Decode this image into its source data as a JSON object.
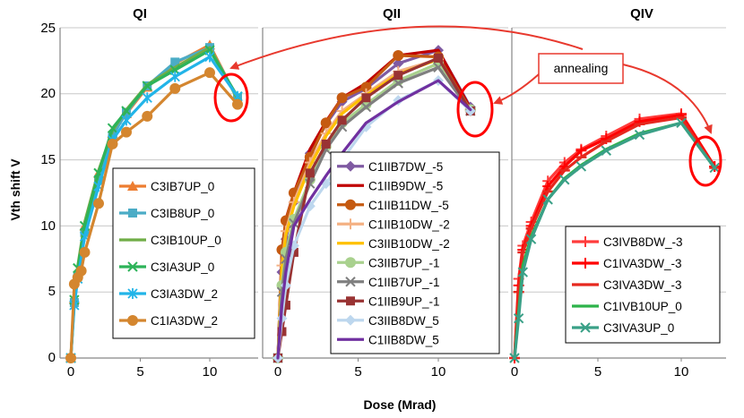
{
  "chart_data": {
    "type": "line",
    "ylabel": "Vth shift V",
    "xlabel": "Dose (Mrad)",
    "ylim": [
      0,
      25
    ],
    "yticks": [
      "0",
      "5",
      "10",
      "15",
      "20",
      "25"
    ],
    "xlim": [
      -1,
      12.5
    ],
    "xticks": [
      0,
      5,
      10
    ],
    "annotation": "annealing",
    "colors": {
      "ellipse": "#ff0000",
      "arrow": "#e8392e",
      "grid": "#c8c8c8",
      "axis": "#868686"
    },
    "panels": [
      {
        "title": "QI",
        "legend_position": "right-middle",
        "series": [
          {
            "name": "C3IB7UP_0",
            "color": "#ed7d31",
            "marker": "triangle",
            "x": [
              0,
              0.25,
              0.5,
              1,
              2,
              3,
              4,
              5.5,
              7.5,
              10,
              12
            ],
            "y": [
              0,
              4.5,
              6.5,
              10.0,
              14.0,
              17.0,
              18.5,
              20.5,
              22.3,
              23.7,
              19.6
            ]
          },
          {
            "name": "C3IB8UP_0",
            "color": "#4bacc6",
            "marker": "square",
            "x": [
              0,
              0.25,
              0.5,
              1,
              2,
              3,
              4,
              5.5,
              7.5,
              10,
              12
            ],
            "y": [
              0,
              4.2,
              6.2,
              9.5,
              13.5,
              16.8,
              18.6,
              20.6,
              22.4,
              23.5,
              19.7
            ]
          },
          {
            "name": "C3IB10UP_0",
            "color": "#70ad47",
            "marker": "none",
            "x": [
              0,
              0.25,
              0.5,
              1,
              2,
              3,
              4,
              5.5,
              7.5,
              10,
              12
            ],
            "y": [
              0,
              4.8,
              7.0,
              10.3,
              14.2,
              17.2,
              18.8,
              20.7,
              22.0,
              23.5,
              19.6
            ]
          },
          {
            "name": "C3IA3UP_0",
            "color": "#2db359",
            "marker": "x",
            "x": [
              0,
              0.25,
              0.5,
              1,
              2,
              3,
              4,
              5.5,
              7.5,
              10,
              12
            ],
            "y": [
              0,
              4.4,
              6.8,
              10.0,
              14.0,
              17.4,
              18.7,
              20.6,
              21.8,
              23.3,
              19.8
            ]
          },
          {
            "name": "C3IA3DW_2",
            "color": "#22b4e8",
            "marker": "star",
            "x": [
              0,
              0.25,
              0.5,
              1,
              2,
              3,
              4,
              5.5,
              7.5,
              10,
              12
            ],
            "y": [
              0,
              4.0,
              6.0,
              9.2,
              13.0,
              16.5,
              18.0,
              19.7,
              21.3,
              22.8,
              19.8
            ]
          },
          {
            "name": "C1IA3DW_2",
            "color": "#d4862f",
            "marker": "circle",
            "x": [
              0,
              0.25,
              0.5,
              0.75,
              1,
              2,
              3,
              4,
              5.5,
              7.5,
              10,
              12
            ],
            "y": [
              0,
              5.6,
              6.1,
              6.6,
              8.0,
              11.7,
              16.2,
              17.1,
              18.3,
              20.4,
              21.6,
              19.2
            ]
          }
        ]
      },
      {
        "title": "QII",
        "legend_position": "bottom-right",
        "series": [
          {
            "name": "C1IIB7DW_-5",
            "color": "#7f5aa2",
            "marker": "diamond",
            "x": [
              0,
              0.25,
              0.5,
              1,
              2,
              3,
              4,
              5.5,
              7.5,
              10,
              12
            ],
            "y": [
              0,
              6.5,
              9.0,
              11.8,
              15.5,
              17.7,
              19.4,
              20.4,
              22.3,
              23.3,
              19.0
            ]
          },
          {
            "name": "C1IIB9DW_-5",
            "color": "#c00000",
            "marker": "none",
            "x": [
              0,
              0.25,
              0.5,
              1,
              2,
              3,
              4,
              5.5,
              7.5,
              10,
              12
            ],
            "y": [
              0,
              8.0,
              10.5,
              12.5,
              15.8,
              17.9,
              19.7,
              20.8,
              22.9,
              23.3,
              18.9
            ]
          },
          {
            "name": "C1IIB11DW_-5",
            "color": "#c55a11",
            "marker": "circle",
            "x": [
              0,
              0.25,
              0.5,
              1,
              2,
              3,
              4,
              5.5,
              7.5,
              10,
              12
            ],
            "y": [
              0,
              8.2,
              10.4,
              12.5,
              15.2,
              17.8,
              19.7,
              20.5,
              22.9,
              22.8,
              18.8
            ]
          },
          {
            "name": "C1IIB10DW_-2",
            "color": "#f4b183",
            "marker": "plus",
            "x": [
              0,
              0.25,
              0.5,
              1,
              2,
              3,
              4,
              5.5,
              7.5,
              10,
              12
            ],
            "y": [
              0,
              7.0,
              9.6,
              11.8,
              14.8,
              17.0,
              18.7,
              20.0,
              21.7,
              22.6,
              18.7
            ]
          },
          {
            "name": "C3IIB10DW_-2",
            "color": "#ffc000",
            "marker": "none",
            "x": [
              0,
              0.25,
              0.5,
              1,
              2,
              3,
              4,
              5.5,
              7.5,
              10,
              12
            ],
            "y": [
              0,
              6.8,
              9.3,
              11.5,
              14.5,
              16.8,
              18.5,
              19.9,
              21.5,
              22.6,
              18.6
            ]
          },
          {
            "name": "C3IIB7UP_-1",
            "color": "#a9d18e",
            "marker": "circle",
            "x": [
              0,
              0.25,
              0.5,
              1,
              2,
              3,
              4,
              5.5,
              7.5,
              10,
              12
            ],
            "y": [
              0,
              5.5,
              8.0,
              10.5,
              13.5,
              16.0,
              17.8,
              19.2,
              21.0,
              22.3,
              18.8
            ]
          },
          {
            "name": "C1IIB7UP_-1",
            "color": "#7f7f7f",
            "marker": "x",
            "x": [
              0,
              0.25,
              0.5,
              1,
              2,
              3,
              4,
              5.5,
              7.5,
              10,
              12
            ],
            "y": [
              0,
              5.0,
              7.5,
              10.2,
              13.2,
              15.8,
              17.5,
              19.0,
              20.8,
              22.0,
              18.7
            ]
          },
          {
            "name": "C1IIB9UP_-1",
            "color": "#993333",
            "marker": "square",
            "x": [
              0,
              0.25,
              0.5,
              1,
              2,
              3,
              4,
              5.5,
              7.5,
              10,
              12
            ],
            "y": [
              0,
              2.0,
              4.0,
              8.0,
              14.0,
              16.2,
              18.0,
              19.7,
              21.4,
              22.7,
              18.7
            ]
          },
          {
            "name": "C3IIB8DW_5",
            "color": "#bdd7ee",
            "marker": "diamond",
            "x": [
              0,
              0.25,
              0.5,
              1,
              2,
              3,
              4,
              5.5,
              7.5,
              10,
              12
            ],
            "y": [
              0,
              3.0,
              5.5,
              8.5,
              11.5,
              13.2,
              15.0,
              17.5,
              19.5,
              21.0,
              18.7
            ]
          },
          {
            "name": "C1IIB8DW_5",
            "color": "#7030a0",
            "marker": "none",
            "x": [
              0,
              0.25,
              0.5,
              1,
              2,
              3,
              4,
              5.5,
              7.5,
              10,
              12
            ],
            "y": [
              0,
              4.0,
              6.5,
              10.0,
              12.0,
              13.8,
              15.5,
              17.8,
              19.4,
              21.0,
              18.8
            ]
          }
        ]
      },
      {
        "title": "QIV",
        "legend_position": "right-middle",
        "series": [
          {
            "name": "C3IVB8DW_-3",
            "color": "#ff3b3b",
            "marker": "plus",
            "x": [
              0,
              0.25,
              0.5,
              1,
              2,
              3,
              4,
              5.5,
              7.5,
              10,
              12
            ],
            "y": [
              0,
              6.0,
              8.5,
              10.3,
              13.4,
              14.8,
              15.8,
              16.8,
              18.1,
              18.5,
              14.5
            ]
          },
          {
            "name": "C1IVA3DW_-3",
            "color": "#ff0000",
            "marker": "plus",
            "x": [
              0,
              0.25,
              0.5,
              1,
              2,
              3,
              4,
              5.5,
              7.5,
              10,
              12
            ],
            "y": [
              0,
              5.5,
              8.2,
              10.0,
              13.0,
              14.5,
              15.7,
              16.6,
              17.9,
              18.4,
              14.5
            ]
          },
          {
            "name": "C3IVA3DW_-3",
            "color": "#e6281e",
            "marker": "dash",
            "x": [
              0,
              0.25,
              0.5,
              1,
              2,
              3,
              4,
              5.5,
              7.5,
              10,
              12
            ],
            "y": [
              0,
              5.0,
              8.0,
              9.8,
              12.6,
              14.2,
              15.2,
              16.4,
              17.7,
              18.2,
              14.4
            ]
          },
          {
            "name": "C1IVB10UP_0",
            "color": "#2db34a",
            "marker": "none",
            "x": [
              0,
              0.25,
              0.5,
              1,
              2,
              3,
              4,
              5.5,
              7.5,
              10,
              12
            ],
            "y": [
              0,
              3.5,
              7.0,
              9.2,
              12.0,
              13.6,
              14.6,
              15.8,
              17.0,
              17.8,
              14.4
            ]
          },
          {
            "name": "C3IVA3UP_0",
            "color": "#3aa087",
            "marker": "x",
            "x": [
              0,
              0.25,
              0.5,
              1,
              2,
              3,
              4,
              5.5,
              7.5,
              10,
              12
            ],
            "y": [
              0,
              3.0,
              6.5,
              9.0,
              12.0,
              13.5,
              14.5,
              15.7,
              16.9,
              17.8,
              14.4
            ]
          }
        ]
      }
    ]
  }
}
